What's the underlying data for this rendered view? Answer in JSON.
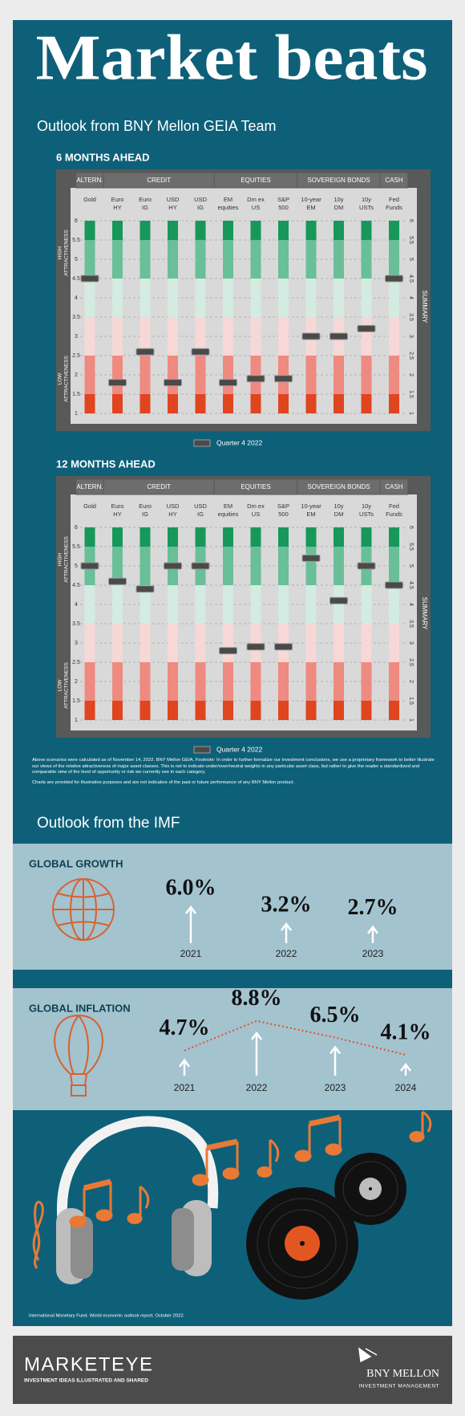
{
  "header": {
    "title": "Market beats"
  },
  "geia": {
    "heading": "Outlook from BNY Mellon GEIA Team",
    "charts": [
      {
        "type": "marker",
        "title": "6 MONTHS AHEAD",
        "groups": [
          {
            "label": "ALTERN.",
            "span": 1
          },
          {
            "label": "CREDIT",
            "span": 4
          },
          {
            "label": "EQUITIES",
            "span": 3
          },
          {
            "label": "SOVEREIGN BONDS",
            "span": 3
          },
          {
            "label": "CASH",
            "span": 1
          }
        ],
        "categories": [
          [
            "Gold"
          ],
          [
            "Euro",
            "HY"
          ],
          [
            "Euro",
            "IG"
          ],
          [
            "USD",
            "HY"
          ],
          [
            "USD",
            "IG"
          ],
          [
            "EM",
            "equities"
          ],
          [
            "Dm ex",
            "US"
          ],
          [
            "S&P",
            "500"
          ],
          [
            "10-year",
            "EM"
          ],
          [
            "10y",
            "DM"
          ],
          [
            "10y",
            "USTs"
          ],
          [
            "Fed",
            "Funds"
          ]
        ],
        "series": [
          {
            "name": "Quarter 4 2022",
            "color": "#4a4a4a",
            "values": [
              4.5,
              1.8,
              2.6,
              1.8,
              2.6,
              1.8,
              1.9,
              1.9,
              3.0,
              3.0,
              3.2,
              4.5
            ]
          }
        ],
        "ylim": [
          1,
          6
        ],
        "yticks": [
          6,
          5.5,
          5,
          4.5,
          4,
          3.5,
          3,
          2.5,
          2,
          1.5,
          1
        ],
        "high_label": [
          "HIGH",
          "ATTRACTIVENESS"
        ],
        "low_label": [
          "LOW",
          "ATTRACTIVENESS"
        ],
        "side_label": "SUMMARY",
        "bands": [
          {
            "from": 6,
            "to": 5.5,
            "color": "#17985a"
          },
          {
            "from": 5.5,
            "to": 4.5,
            "color": "#69bf98"
          },
          {
            "from": 4.5,
            "to": 3.5,
            "color": "#d3ebe1"
          },
          {
            "from": 3.5,
            "to": 2.5,
            "color": "#f6d8d6"
          },
          {
            "from": 2.5,
            "to": 1.5,
            "color": "#ee8a80"
          },
          {
            "from": 1.5,
            "to": 1,
            "color": "#e0451f"
          }
        ],
        "grid": true
      },
      {
        "type": "marker",
        "title": "12 MONTHS AHEAD",
        "groups": [
          {
            "label": "ALTERN.",
            "span": 1
          },
          {
            "label": "CREDIT",
            "span": 4
          },
          {
            "label": "EQUITIES",
            "span": 3
          },
          {
            "label": "SOVEREIGN BONDS",
            "span": 3
          },
          {
            "label": "CASH",
            "span": 1
          }
        ],
        "categories": [
          [
            "Gold"
          ],
          [
            "Euro",
            "HY"
          ],
          [
            "Euro",
            "IG"
          ],
          [
            "USD",
            "HY"
          ],
          [
            "USD",
            "IG"
          ],
          [
            "EM",
            "equities"
          ],
          [
            "Dm ex",
            "US"
          ],
          [
            "S&P",
            "500"
          ],
          [
            "10-year",
            "EM"
          ],
          [
            "10y",
            "DM"
          ],
          [
            "10y",
            "USTs"
          ],
          [
            "Fed",
            "Funds"
          ]
        ],
        "series": [
          {
            "name": "Quarter 4 2022",
            "color": "#4a4a4a",
            "values": [
              5.0,
              4.6,
              4.4,
              5.0,
              5.0,
              2.8,
              2.9,
              2.9,
              5.2,
              4.1,
              5.0,
              4.5
            ]
          }
        ],
        "ylim": [
          1,
          6
        ],
        "yticks": [
          6,
          5.5,
          5,
          4.5,
          4,
          3.5,
          3,
          2.5,
          2,
          1.5,
          1
        ],
        "high_label": [
          "HIGH",
          "ATTRACTIVENESS"
        ],
        "low_label": [
          "LOW",
          "ATTRACTIVENESS"
        ],
        "side_label": "SUMMARY",
        "bands": [
          {
            "from": 6,
            "to": 5.5,
            "color": "#17985a"
          },
          {
            "from": 5.5,
            "to": 4.5,
            "color": "#69bf98"
          },
          {
            "from": 4.5,
            "to": 3.5,
            "color": "#d3ebe1"
          },
          {
            "from": 3.5,
            "to": 2.5,
            "color": "#f6d8d6"
          },
          {
            "from": 2.5,
            "to": 1.5,
            "color": "#ee8a80"
          },
          {
            "from": 1.5,
            "to": 1,
            "color": "#e0451f"
          }
        ],
        "grid": true
      }
    ],
    "notes": [
      "Above scenarios were calculated as of November 14, 2022. BNY Mellon GEIA. Footnote: In order to further formalize our investment conclusions, we use a proprietary framework to better illustrate our views of the relative attractiveness of major asset classes. This is not to indicate under/over/neutral weights in any particular asset class, but rather to give the reader a standardized and comparable view of the level of opportunity or risk we currently see in each category.",
      "Charts are provided for illustrative purposes and are not indicative of the past or future performance of any BNY Mellon product."
    ]
  },
  "imf": {
    "heading": "Outlook from the IMF",
    "growth": {
      "title": "GLOBAL GROWTH",
      "categories": [
        "2021",
        "2022",
        "2023"
      ],
      "values": [
        6.0,
        3.2,
        2.7
      ],
      "value_labels": [
        "6.0%",
        "3.2%",
        "2.7%"
      ],
      "color": "#ffffff"
    },
    "inflation": {
      "title": "GLOBAL INFLATION",
      "categories": [
        "2021",
        "2022",
        "2023",
        "2024"
      ],
      "values": [
        4.7,
        8.8,
        6.5,
        4.1
      ],
      "value_labels": [
        "4.7%",
        "8.8%",
        "6.5%",
        "4.1%"
      ],
      "color": "#ffffff",
      "line_color": "#e0522a"
    },
    "source": "International Monetary Fund. World economic outlook report. October 2022."
  },
  "footer": {
    "brand": "MARKETEYE",
    "tagline": "INVESTMENT IDEAS ILLUSTRATED AND SHARED",
    "company": "BNY MELLON",
    "division": "INVESTMENT MANAGEMENT"
  }
}
